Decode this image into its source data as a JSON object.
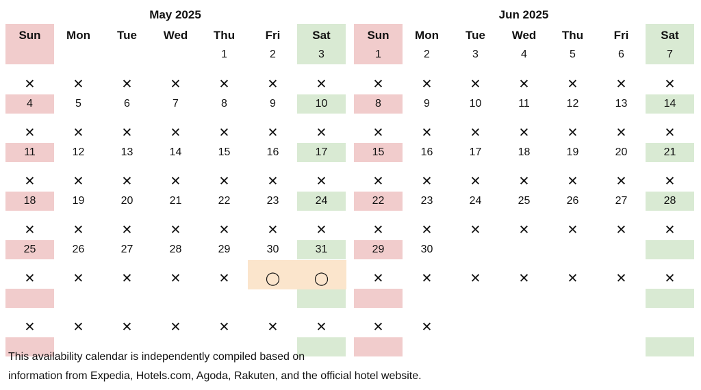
{
  "colors": {
    "sunday_bg": "#f1cccc",
    "saturday_bg": "#d9ead3",
    "available_bg": "#fbe5cc",
    "text": "#111111"
  },
  "symbols": {
    "unavailable": "✕",
    "available": "◯"
  },
  "months": [
    {
      "title": "May 2025",
      "weekdays": [
        "Sun",
        "Mon",
        "Tue",
        "Wed",
        "Thu",
        "Fri",
        "Sat"
      ],
      "weeks": [
        {
          "days": [
            "",
            "",
            "",
            "",
            "1",
            "2",
            "3"
          ],
          "status": [
            "",
            "",
            "",
            "",
            "",
            "",
            ""
          ]
        },
        {
          "days": [
            "4",
            "5",
            "6",
            "7",
            "8",
            "9",
            "10"
          ],
          "status": [
            "x",
            "x",
            "x",
            "x",
            "x",
            "x",
            "x"
          ]
        },
        {
          "days": [
            "11",
            "12",
            "13",
            "14",
            "15",
            "16",
            "17"
          ],
          "status": [
            "x",
            "x",
            "x",
            "x",
            "x",
            "x",
            "x"
          ]
        },
        {
          "days": [
            "18",
            "19",
            "20",
            "21",
            "22",
            "23",
            "24"
          ],
          "status": [
            "x",
            "x",
            "x",
            "x",
            "x",
            "x",
            "x"
          ]
        },
        {
          "days": [
            "25",
            "26",
            "27",
            "28",
            "29",
            "30",
            "31"
          ],
          "status": [
            "x",
            "x",
            "x",
            "x",
            "x",
            "x",
            "x"
          ]
        },
        {
          "days": [
            "",
            "",
            "",
            "",
            "",
            "",
            ""
          ],
          "status": [
            "x",
            "x",
            "x",
            "x",
            "x",
            "o",
            "o"
          ]
        },
        {
          "days": [
            "",
            "",
            "",
            "",
            "",
            "",
            ""
          ],
          "status": [
            "x",
            "x",
            "x",
            "x",
            "x",
            "x",
            "x"
          ]
        }
      ]
    },
    {
      "title": "Jun 2025",
      "weekdays": [
        "Sun",
        "Mon",
        "Tue",
        "Wed",
        "Thu",
        "Fri",
        "Sat"
      ],
      "weeks": [
        {
          "days": [
            "1",
            "2",
            "3",
            "4",
            "5",
            "6",
            "7"
          ],
          "status": [
            "",
            "",
            "",
            "",
            "",
            "",
            ""
          ]
        },
        {
          "days": [
            "8",
            "9",
            "10",
            "11",
            "12",
            "13",
            "14"
          ],
          "status": [
            "x",
            "x",
            "x",
            "x",
            "x",
            "x",
            "x"
          ]
        },
        {
          "days": [
            "15",
            "16",
            "17",
            "18",
            "19",
            "20",
            "21"
          ],
          "status": [
            "x",
            "x",
            "x",
            "x",
            "x",
            "x",
            "x"
          ]
        },
        {
          "days": [
            "22",
            "23",
            "24",
            "25",
            "26",
            "27",
            "28"
          ],
          "status": [
            "x",
            "x",
            "x",
            "x",
            "x",
            "x",
            "x"
          ]
        },
        {
          "days": [
            "29",
            "30",
            "",
            "",
            "",
            "",
            ""
          ],
          "status": [
            "x",
            "x",
            "x",
            "x",
            "x",
            "x",
            "x"
          ]
        },
        {
          "days": [
            "",
            "",
            "",
            "",
            "",
            "",
            ""
          ],
          "status": [
            "x",
            "x",
            "x",
            "x",
            "x",
            "x",
            "x"
          ]
        },
        {
          "days": [
            "",
            "",
            "",
            "",
            "",
            "",
            ""
          ],
          "status": [
            "x",
            "x",
            "",
            "",
            "",
            "",
            ""
          ]
        }
      ]
    }
  ],
  "footer": {
    "line1": "This availability calendar is independently compiled based on",
    "line2": "information from Expedia, Hotels.com, Agoda, Rakuten, and the official hotel website."
  }
}
